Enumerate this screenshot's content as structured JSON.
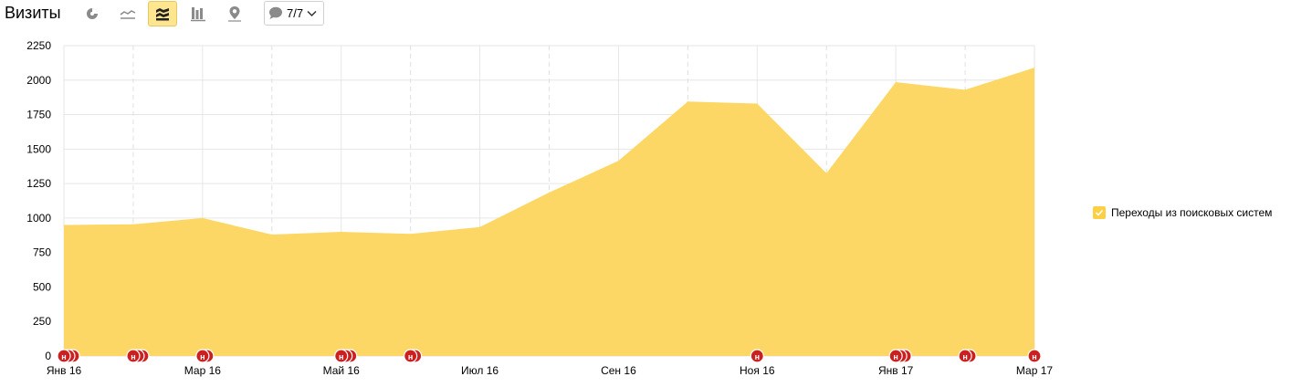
{
  "header": {
    "title": "Визиты",
    "notes_count": "7/7"
  },
  "toolbar": {
    "buttons": [
      {
        "icon": "pie-chart-icon",
        "active": false
      },
      {
        "icon": "line-chart-icon",
        "active": false
      },
      {
        "icon": "area-chart-icon",
        "active": true
      },
      {
        "icon": "bar-chart-icon",
        "active": false
      },
      {
        "icon": "map-pin-icon",
        "active": false
      }
    ],
    "notes_icon": "comment-icon",
    "dropdown_icon": "chevron-down-icon"
  },
  "colors": {
    "area": "#fdd765",
    "legend": "#fccf44",
    "marker": "#cc1f1f",
    "grid": "#e6e6e6"
  },
  "chart_data": {
    "type": "area",
    "title": "",
    "xlabel": "",
    "ylabel": "",
    "ylim": [
      0,
      2250
    ],
    "yticks": [
      0,
      250,
      500,
      750,
      1000,
      1250,
      1500,
      1750,
      2000,
      2250
    ],
    "ytick_labels": [
      "0",
      "250",
      "500",
      "750",
      "1000",
      "1250",
      "1500",
      "1750",
      "2000",
      "2250"
    ],
    "x_labels": [
      "Янв 16",
      "Мар 16",
      "Май 16",
      "Июл 16",
      "Сен 16",
      "Ноя 16",
      "Янв 17",
      "Мар 17"
    ],
    "x": [
      "2016-01",
      "2016-02",
      "2016-03",
      "2016-04",
      "2016-05",
      "2016-06",
      "2016-07",
      "2016-08",
      "2016-09",
      "2016-10",
      "2016-11",
      "2016-12",
      "2017-01",
      "2017-02",
      "2017-03"
    ],
    "series": [
      {
        "name": "Переходы из поисковых систем",
        "values": [
          950,
          955,
          1000,
          880,
          900,
          885,
          935,
          1185,
          1415,
          1845,
          1830,
          1325,
          1985,
          1930,
          2090
        ]
      }
    ],
    "grid": true,
    "legend_position": "right",
    "notes": [
      {
        "month": "2016-01",
        "count": 3,
        "label": "н"
      },
      {
        "month": "2016-02",
        "count": 3,
        "label": "н"
      },
      {
        "month": "2016-03",
        "count": 2,
        "label": "н"
      },
      {
        "month": "2016-05",
        "count": 3,
        "label": "н"
      },
      {
        "month": "2016-06",
        "count": 2,
        "label": "н"
      },
      {
        "month": "2016-11",
        "count": 1,
        "label": "н"
      },
      {
        "month": "2017-01",
        "count": 3,
        "label": "н"
      },
      {
        "month": "2017-02",
        "count": 2,
        "label": "н"
      },
      {
        "month": "2017-03",
        "count": 1,
        "label": "н"
      }
    ]
  }
}
